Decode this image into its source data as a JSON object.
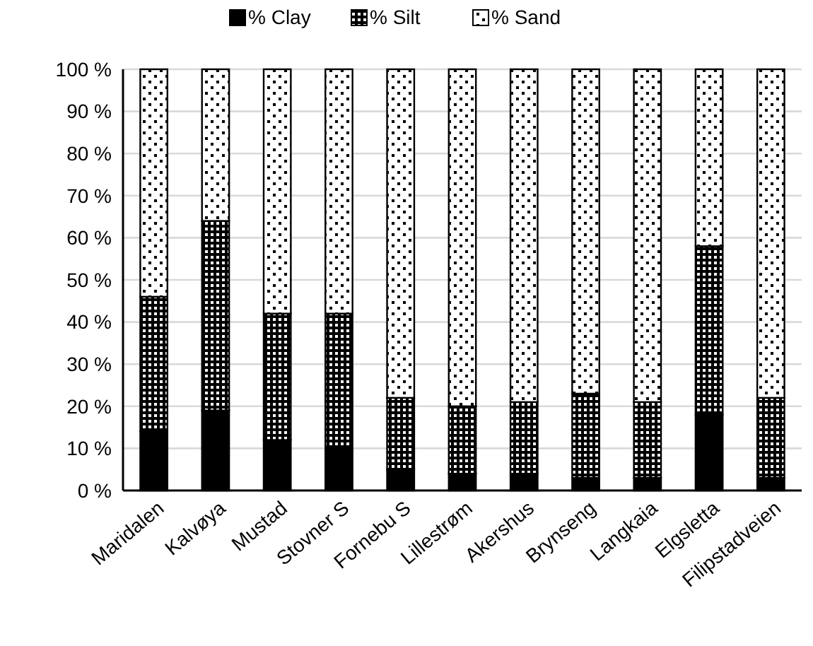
{
  "chart_data": {
    "type": "bar",
    "stacked": true,
    "categories": [
      "Maridalen",
      "Kalvøya",
      "Mustad",
      "Stovner S",
      "Fornebu S",
      "Lillestrøm",
      "Akershus",
      "Brynseng",
      "Langkaia",
      "Elgsletta",
      "Filipstadveien"
    ],
    "series": [
      {
        "name": "% Clay",
        "color": "#000000",
        "values": [
          14,
          19,
          12,
          10,
          5,
          4,
          4,
          3,
          3,
          18,
          3
        ]
      },
      {
        "name": "% Silt",
        "color": "#000000",
        "values": [
          32,
          45,
          30,
          32,
          17,
          16,
          17,
          20,
          18,
          40,
          19
        ]
      },
      {
        "name": "% Sand",
        "color": "#000000",
        "values": [
          54,
          36,
          58,
          58,
          78,
          80,
          79,
          77,
          79,
          42,
          78
        ]
      }
    ],
    "ylim": [
      0,
      100
    ],
    "yticks": [
      {
        "value": 0,
        "label": "0 %"
      },
      {
        "value": 10,
        "label": "10 %"
      },
      {
        "value": 20,
        "label": "20 %"
      },
      {
        "value": 30,
        "label": "30 %"
      },
      {
        "value": 40,
        "label": "40 %"
      },
      {
        "value": 50,
        "label": "50 %"
      },
      {
        "value": 60,
        "label": "60 %"
      },
      {
        "value": 70,
        "label": "70 %"
      },
      {
        "value": 80,
        "label": "80 %"
      },
      {
        "value": 90,
        "label": "90 %"
      },
      {
        "value": 100,
        "label": "100 %"
      }
    ],
    "grid": "y",
    "legend": "top"
  }
}
